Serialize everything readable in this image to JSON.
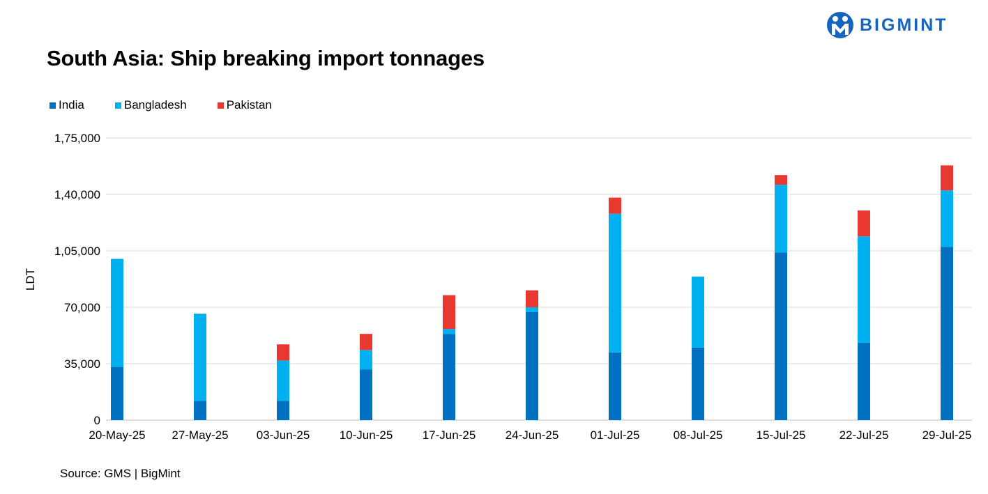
{
  "logo": {
    "text": "BIGMINT"
  },
  "header": {
    "title": "South Asia: Ship breaking import tonnages"
  },
  "footer": {
    "source": "Source: GMS | BigMint"
  },
  "chart_data": {
    "type": "bar",
    "stacked": true,
    "title": "South Asia: Ship breaking import tonnages",
    "xlabel": "",
    "ylabel": "LDT",
    "ylim": [
      0,
      175000
    ],
    "yticks": [
      0,
      35000,
      70000,
      105000,
      140000,
      175000
    ],
    "ytick_labels": [
      "0",
      "35,000",
      "70,000",
      "1,05,000",
      "1,40,000",
      "1,75,000"
    ],
    "grid": true,
    "legend_position": "top-left",
    "categories": [
      "20-May-25",
      "27-May-25",
      "03-Jun-25",
      "10-Jun-25",
      "17-Jun-25",
      "24-Jun-25",
      "01-Jul-25",
      "08-Jul-25",
      "15-Jul-25",
      "22-Jul-25",
      "29-Jul-25"
    ],
    "series": [
      {
        "name": "India",
        "color": "#0070c0",
        "values": [
          33000,
          12000,
          12000,
          31500,
          53500,
          67000,
          42000,
          45000,
          104000,
          48000,
          107500
        ]
      },
      {
        "name": "Bangladesh",
        "color": "#00b0f0",
        "values": [
          67000,
          54000,
          25000,
          12000,
          3000,
          3000,
          86000,
          44000,
          42000,
          66000,
          35000
        ]
      },
      {
        "name": "Pakistan",
        "color": "#e8382f",
        "values": [
          0,
          0,
          10000,
          10000,
          21000,
          10500,
          10000,
          0,
          6000,
          16000,
          15500
        ]
      }
    ]
  }
}
